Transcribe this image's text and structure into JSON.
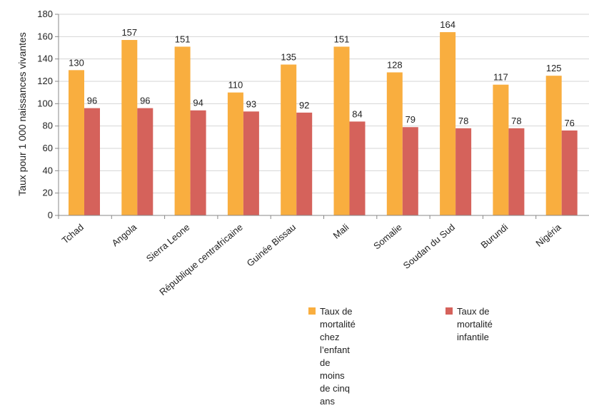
{
  "chart_data": {
    "type": "bar",
    "ylabel": "Taux pour 1 000 naissances vivantes",
    "xlabel": "",
    "ylim": [
      0,
      180
    ],
    "yticks": [
      0,
      20,
      40,
      60,
      80,
      100,
      120,
      140,
      160,
      180
    ],
    "grid": true,
    "legend_position": "bottom-right",
    "categories": [
      "Tchad",
      "Angola",
      "Sierra Leone",
      "République centrafricaine",
      "Guinée Bissau",
      "Mali",
      "Somalie",
      "Soudan du Sud",
      "Burundi",
      "Nigéria"
    ],
    "series": [
      {
        "name": "Taux de mortalité chez\nl’enfant de moins\nde cinq ans",
        "color": "#f9ae3f",
        "values": [
          130,
          157,
          151,
          110,
          135,
          151,
          128,
          164,
          117,
          125
        ]
      },
      {
        "name": "Taux de mortalité infantile",
        "color": "#d5625b",
        "values": [
          96,
          96,
          94,
          93,
          92,
          84,
          79,
          78,
          78,
          76
        ]
      }
    ]
  }
}
